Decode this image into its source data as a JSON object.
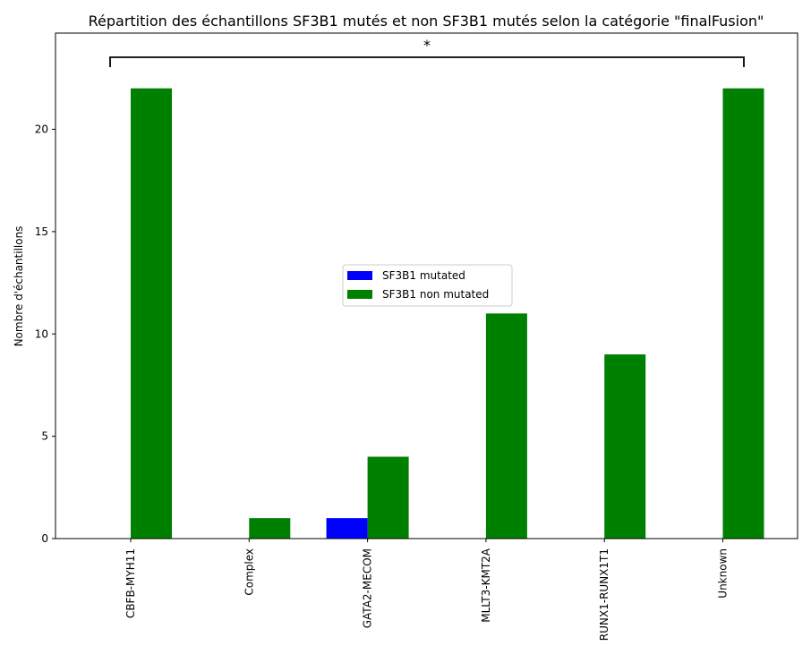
{
  "chart_data": {
    "type": "bar",
    "title": "Répartition des échantillons SF3B1 mutés et non SF3B1 mutés selon la catégorie \"finalFusion\"",
    "xlabel": "",
    "ylabel": "Nombre d'échantillons",
    "categories": [
      "CBFB-MYH11",
      "Complex",
      "GATA2-MECOM",
      "MLLT3-KMT2A",
      "RUNX1-RUNX1T1",
      "Unknown"
    ],
    "series": [
      {
        "name": "SF3B1 mutated",
        "color": "#0000ff",
        "values": [
          0,
          0,
          1,
          0,
          0,
          0
        ]
      },
      {
        "name": "SF3B1 non mutated",
        "color": "#008000",
        "values": [
          22,
          1,
          4,
          11,
          9,
          22
        ]
      }
    ],
    "ylim": [
      0,
      24.7
    ],
    "yticks": [
      0,
      5,
      10,
      15,
      20
    ],
    "grid": false,
    "legend_position": "center",
    "significance": {
      "label": "*",
      "from_category": "CBFB-MYH11",
      "to_category": "Unknown"
    }
  }
}
